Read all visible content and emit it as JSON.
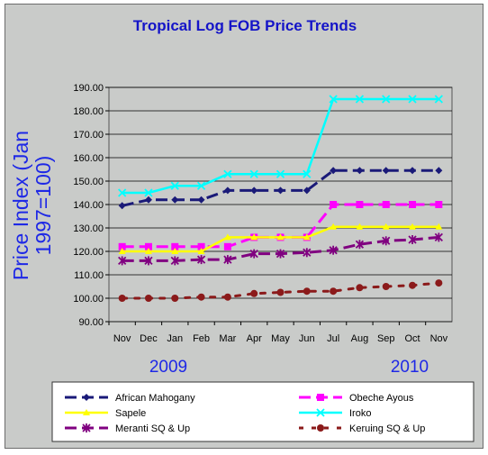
{
  "chart_data": {
    "type": "line",
    "title": "Tropical Log FOB Price Trends",
    "ylabel_line1": "Price Index (Jan",
    "ylabel_line2": "1997=100)",
    "categories": [
      "Nov",
      "Dec",
      "Jan",
      "Feb",
      "Mar",
      "Apr",
      "May",
      "Jun",
      "Jul",
      "Aug",
      "Sep",
      "Oct",
      "Nov"
    ],
    "year_labels": [
      "2009",
      "2010"
    ],
    "ylim": [
      90,
      190
    ],
    "yticks": [
      "90.00",
      "100.00",
      "110.00",
      "120.00",
      "130.00",
      "140.00",
      "150.00",
      "160.00",
      "170.00",
      "180.00",
      "190.00"
    ],
    "grid": "horizontal",
    "legend_position": "bottom",
    "series": [
      {
        "name": "African Mahogany",
        "color": "#1a1a78",
        "marker": "diamond",
        "dash": "long",
        "values": [
          139.5,
          142,
          142,
          142,
          146,
          146,
          146,
          146,
          154.5,
          154.5,
          154.5,
          154.5,
          154.5
        ]
      },
      {
        "name": "Obeche Ayous",
        "color": "#ff00ff",
        "marker": "square",
        "dash": "long",
        "values": [
          122,
          122,
          122,
          122,
          122,
          126,
          126,
          126,
          140,
          140,
          140,
          140,
          140
        ]
      },
      {
        "name": "Sapele",
        "color": "#ffff00",
        "marker": "triangle",
        "dash": "solid",
        "values": [
          120,
          120,
          120,
          120,
          126,
          126,
          126,
          126,
          130.5,
          130.5,
          130.5,
          130.5,
          130.5
        ]
      },
      {
        "name": "Iroko",
        "color": "#00ffff",
        "marker": "star",
        "dash": "solid",
        "values": [
          145,
          145,
          148,
          148,
          153,
          153,
          153,
          153,
          185,
          185,
          185,
          185,
          185
        ]
      },
      {
        "name": "Meranti SQ & Up",
        "color": "#800080",
        "marker": "asterisk",
        "dash": "long",
        "values": [
          116,
          116,
          116,
          116.5,
          116.5,
          119,
          119,
          119.5,
          120.5,
          123,
          124.5,
          125,
          126
        ]
      },
      {
        "name": "Keruing SQ & Up",
        "color": "#8b1a1a",
        "marker": "circle",
        "dash": "dot",
        "values": [
          100,
          100,
          100,
          100.5,
          100.5,
          102,
          102.5,
          103,
          103,
          104.5,
          105,
          105.5,
          106.5
        ]
      }
    ]
  }
}
